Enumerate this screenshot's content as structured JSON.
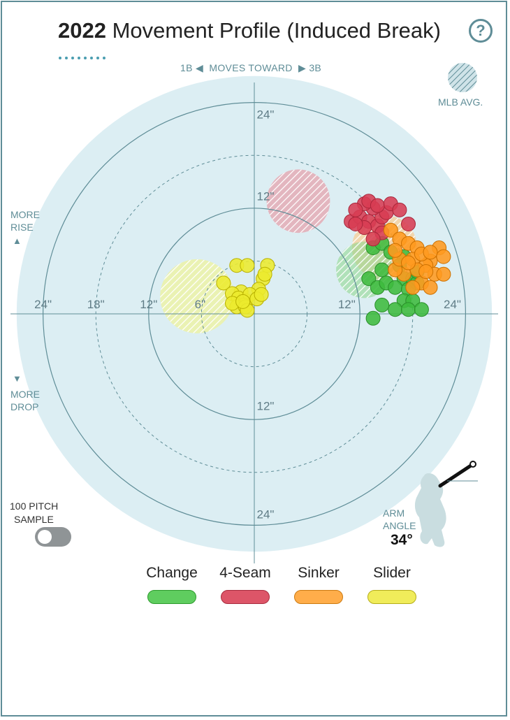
{
  "header": {
    "year": "2022",
    "title": "Movement Profile (Induced Break)",
    "help_label": "?"
  },
  "direction": {
    "left": "1B",
    "middle": "MOVES TOWARD",
    "right": "3B"
  },
  "mlb_avg_label": "MLB AVG.",
  "side_labels": {
    "rise_1": "MORE",
    "rise_2": "RISE",
    "drop_1": "MORE",
    "drop_2": "DROP"
  },
  "toggle": {
    "line1": "100 PITCH",
    "line2": "SAMPLE",
    "enabled": false
  },
  "arm_angle": {
    "line1": "ARM",
    "line2": "ANGLE",
    "value": "34°"
  },
  "colors": {
    "Change": "#3dbb3d",
    "4-Seam": "#d73c53",
    "Sinker": "#ff9a1f",
    "Slider": "#ecea2e",
    "plot_bg": "#dceef3",
    "axis": "#5f8d97"
  },
  "chart_data": {
    "type": "scatter",
    "ring_labels": {
      "left": [
        "24\"",
        "18\"",
        "12\"",
        "6\""
      ],
      "right": [
        "12\"",
        "24\""
      ],
      "top": [
        "24\"",
        "12\""
      ],
      "bottom": [
        "12\"",
        "24\""
      ]
    },
    "series": [
      {
        "name": "Change",
        "points": [
          [
            13.5,
            7.5
          ],
          [
            14.5,
            8
          ],
          [
            15.5,
            7
          ],
          [
            17,
            6.5
          ],
          [
            16.5,
            5.5
          ],
          [
            14.5,
            5
          ],
          [
            13,
            4
          ],
          [
            14,
            3
          ],
          [
            15,
            3.5
          ],
          [
            17,
            4
          ],
          [
            16,
            3
          ],
          [
            18,
            4
          ],
          [
            18.5,
            3.5
          ],
          [
            17.5,
            2.8
          ],
          [
            17,
            1.5
          ],
          [
            18,
            1.5
          ],
          [
            16,
            0.5
          ],
          [
            17.5,
            0.5
          ],
          [
            19,
            0.5
          ],
          [
            14.5,
            1
          ],
          [
            18.5,
            4.8
          ],
          [
            13.5,
            -0.5
          ]
        ]
      },
      {
        "name": "4-Seam",
        "points": [
          [
            11,
            10.5
          ],
          [
            12,
            11
          ],
          [
            13,
            10.5
          ],
          [
            14,
            10
          ],
          [
            14.5,
            11
          ],
          [
            15,
            11.5
          ],
          [
            13.5,
            12
          ],
          [
            12.5,
            12.5
          ],
          [
            11.5,
            11.8
          ],
          [
            13,
            12.8
          ],
          [
            14,
            12.3
          ],
          [
            15.5,
            12.5
          ],
          [
            16.5,
            11.8
          ],
          [
            17.5,
            10.2
          ],
          [
            14.5,
            9.2
          ],
          [
            13.5,
            8.5
          ],
          [
            12.5,
            9.8
          ],
          [
            11.5,
            10.2
          ]
        ]
      },
      {
        "name": "Sinker",
        "points": [
          [
            15.5,
            9.5
          ],
          [
            16.5,
            8.5
          ],
          [
            17.5,
            8
          ],
          [
            18.5,
            7.5
          ],
          [
            20,
            6
          ],
          [
            21,
            7.5
          ],
          [
            19.5,
            5.5
          ],
          [
            20.5,
            4.5
          ],
          [
            21.5,
            4.5
          ],
          [
            19,
            3.5
          ],
          [
            18,
            3
          ],
          [
            17,
            4.5
          ],
          [
            16,
            5
          ],
          [
            16.5,
            6.2
          ],
          [
            18,
            6.2
          ],
          [
            19,
            6.8
          ],
          [
            20,
            7
          ],
          [
            18.5,
            5
          ],
          [
            20,
            3
          ],
          [
            19.5,
            4.8
          ],
          [
            17.5,
            5.8
          ],
          [
            21.5,
            6.5
          ],
          [
            16,
            7.2
          ]
        ]
      },
      {
        "name": "Slider",
        "points": [
          [
            -2,
            5.5
          ],
          [
            -0.8,
            5.5
          ],
          [
            1.5,
            5.5
          ],
          [
            -3.5,
            3.5
          ],
          [
            1,
            4
          ],
          [
            1.2,
            4.5
          ],
          [
            0.5,
            2.8
          ],
          [
            -1.5,
            2.5
          ],
          [
            -2.5,
            2.3
          ],
          [
            -1.8,
            1.8
          ],
          [
            -1,
            1.5
          ],
          [
            -0.5,
            2.2
          ],
          [
            0.3,
            1.7
          ],
          [
            -1.2,
            1
          ],
          [
            -2,
            0.8
          ],
          [
            -2.5,
            1.2
          ],
          [
            -1,
            0.8
          ],
          [
            -0.8,
            0.4
          ],
          [
            -1.3,
            1.4
          ],
          [
            0.8,
            2.2
          ]
        ]
      }
    ],
    "mlb_avg": [
      {
        "name": "4-Seam",
        "x": 5,
        "y": 12.8,
        "r": 3.6
      },
      {
        "name": "Sinker",
        "x": 14.8,
        "y": 7.5,
        "r": 3.7
      },
      {
        "name": "Change",
        "x": 12.5,
        "y": 5,
        "r": 3.2
      },
      {
        "name": "Slider",
        "x": -6.5,
        "y": 2,
        "r": 4.2
      }
    ]
  },
  "legend": [
    {
      "label": "Change"
    },
    {
      "label": "4-Seam"
    },
    {
      "label": "Sinker"
    },
    {
      "label": "Slider"
    }
  ]
}
